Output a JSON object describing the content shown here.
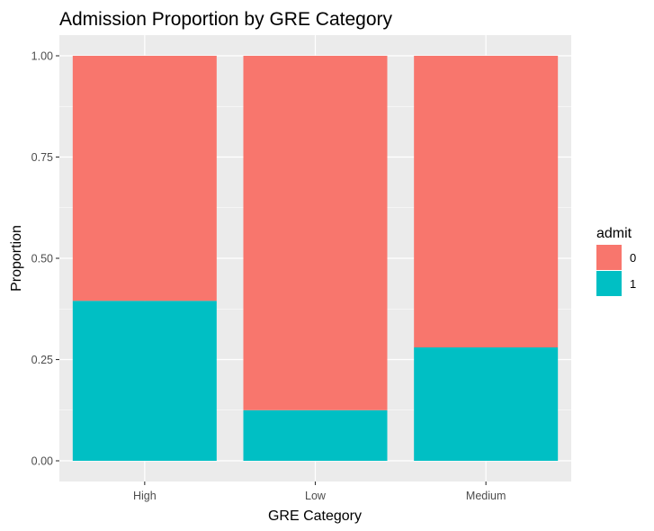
{
  "chart_data": {
    "type": "bar",
    "stacked": true,
    "title": "Admission Proportion by GRE Category",
    "xlabel": "GRE Category",
    "ylabel": "Proportion",
    "categories": [
      "High",
      "Low",
      "Medium"
    ],
    "ylim": [
      0,
      1
    ],
    "yticks": [
      "0.00",
      "0.25",
      "0.50",
      "0.75",
      "1.00"
    ],
    "grid": true,
    "legend": {
      "title": "admit",
      "placement": "right"
    },
    "series": [
      {
        "name": "0",
        "color": "#F8766D",
        "values": [
          0.605,
          0.875,
          0.72
        ]
      },
      {
        "name": "1",
        "color": "#00BFC4",
        "values": [
          0.395,
          0.125,
          0.28
        ]
      }
    ]
  }
}
